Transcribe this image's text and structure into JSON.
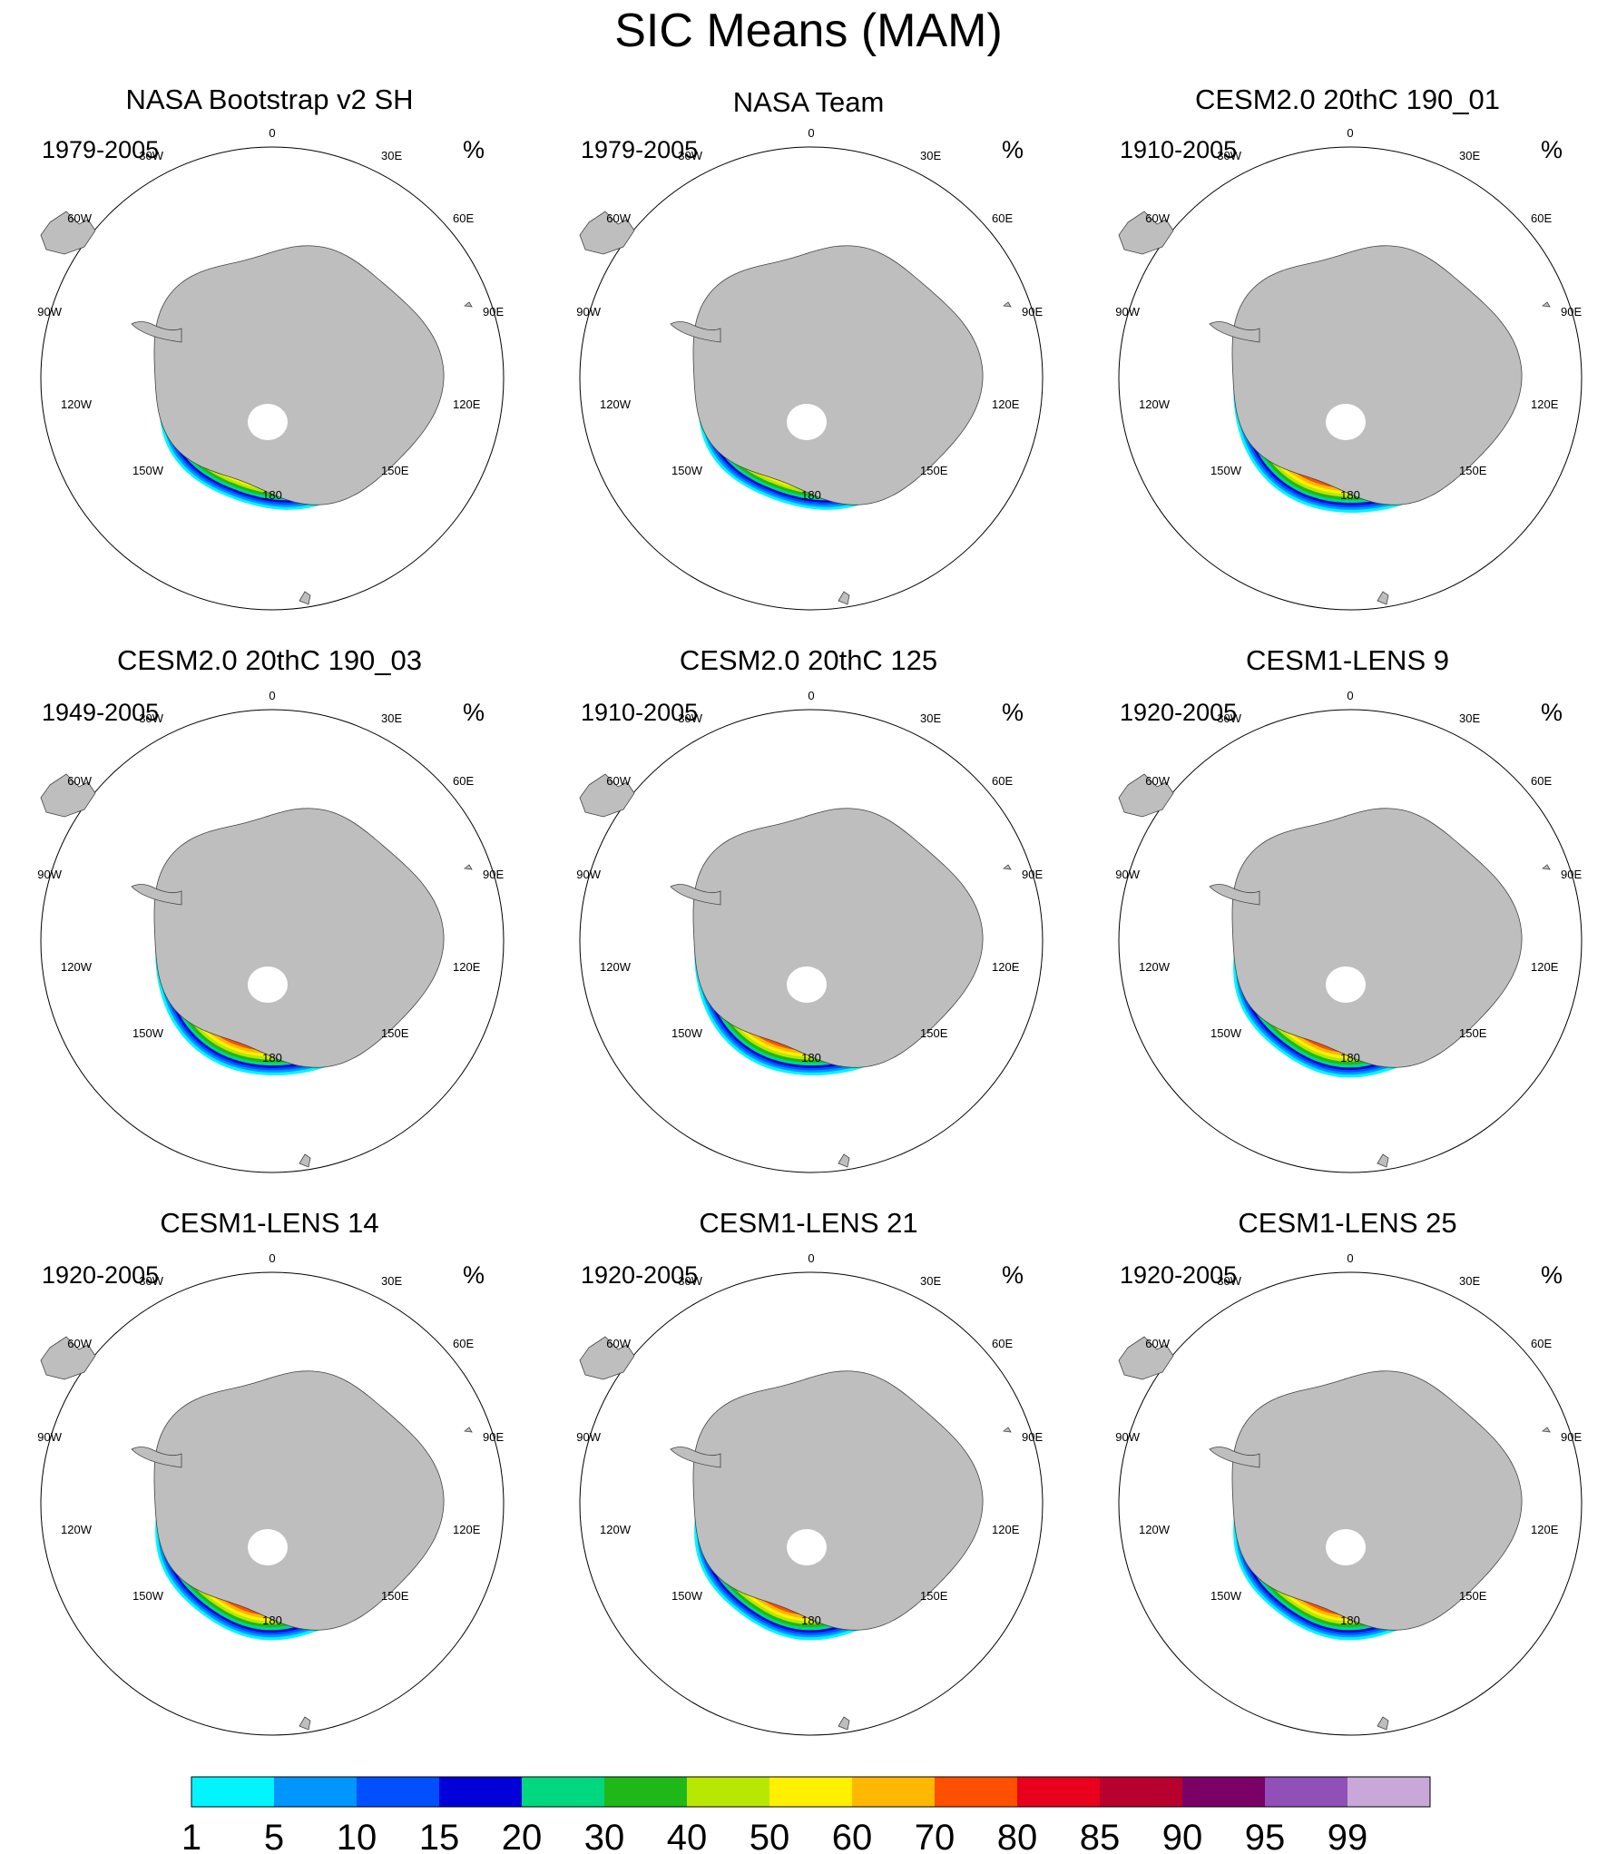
{
  "title": "SIC Means (MAM)",
  "units_label": "%",
  "longitude_labels": [
    "0",
    "30E",
    "60E",
    "90E",
    "120E",
    "150E",
    "180",
    "150W",
    "120W",
    "90W",
    "60W",
    "30W"
  ],
  "panels": [
    {
      "title": "NASA Bootstrap v2 SH",
      "period": "1979-2005",
      "pattern": "obs"
    },
    {
      "title": "NASA Team",
      "period": "1979-2005",
      "pattern": "obs"
    },
    {
      "title": "CESM2.0 20thC 190_01",
      "period": "1910-2005",
      "pattern": "model"
    },
    {
      "title": "CESM2.0 20thC 190_03",
      "period": "1949-2005",
      "pattern": "model"
    },
    {
      "title": "CESM2.0 20thC 125",
      "period": "1910-2005",
      "pattern": "model"
    },
    {
      "title": "CESM1-LENS 9",
      "period": "1920-2005",
      "pattern": "lens"
    },
    {
      "title": "CESM1-LENS 14",
      "period": "1920-2005",
      "pattern": "lens"
    },
    {
      "title": "CESM1-LENS 21",
      "period": "1920-2005",
      "pattern": "lens"
    },
    {
      "title": "CESM1-LENS 25",
      "period": "1920-2005",
      "pattern": "lens"
    }
  ],
  "colorbar": {
    "labels": [
      "1",
      "5",
      "10",
      "15",
      "20",
      "30",
      "40",
      "50",
      "60",
      "70",
      "80",
      "85",
      "90",
      "95",
      "99"
    ],
    "colors": [
      "#00f5ff",
      "#0096ff",
      "#0050ff",
      "#0000d8",
      "#00d880",
      "#20b818",
      "#b8e800",
      "#fff000",
      "#ffb800",
      "#ff5000",
      "#e8001c",
      "#b8002e",
      "#7a0066",
      "#9050b8",
      "#c8a8d8"
    ]
  },
  "land_color": "#bebebe"
}
